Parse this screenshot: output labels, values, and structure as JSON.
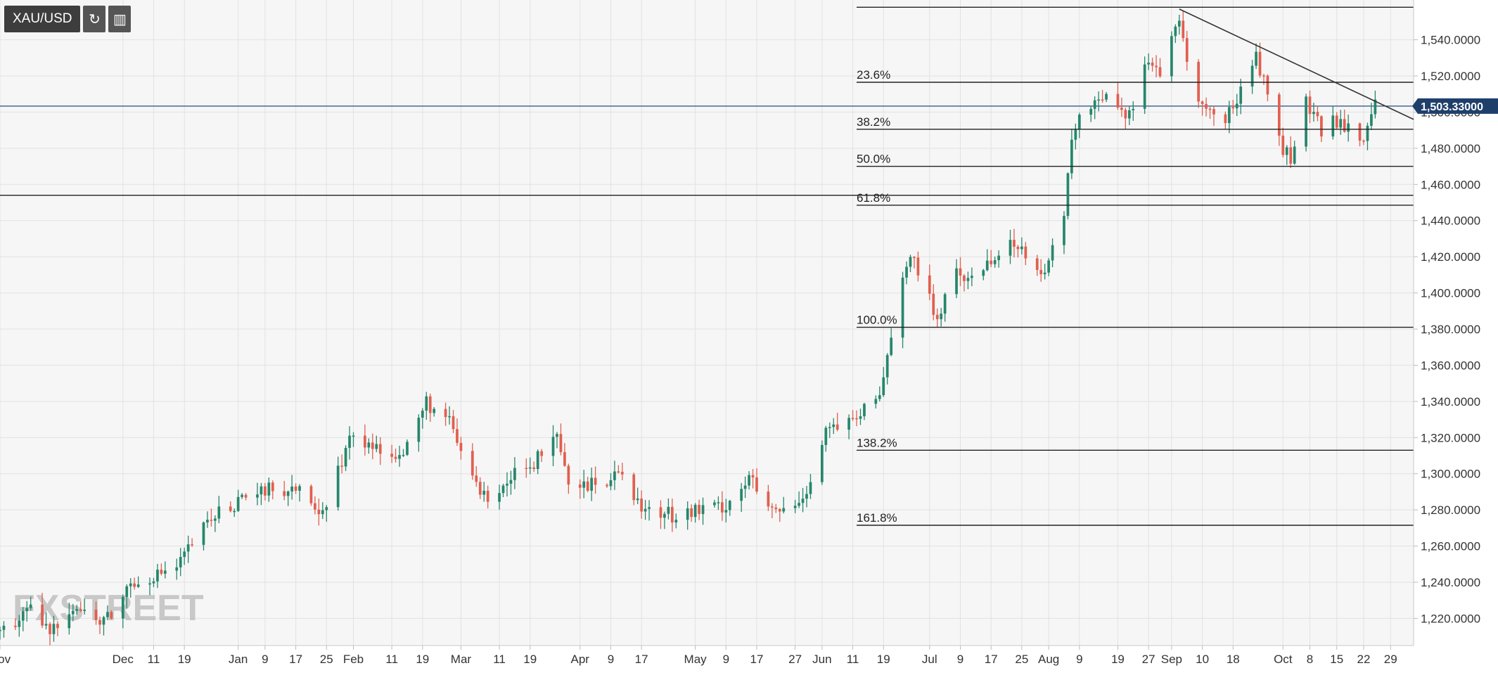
{
  "toolbar": {
    "symbol": "XAU/USD",
    "refresh_icon": "refresh-icon",
    "indicator_icon": "indicator-icon"
  },
  "watermark": "FXSTREET",
  "current_price_label": "1,503.33000",
  "colors": {
    "up": "#26866b",
    "down": "#e15f4f",
    "current_line": "#2c4a7c",
    "badge": "#1f3f6b"
  },
  "chart_data": {
    "type": "candlestick",
    "symbol": "XAU/USD",
    "ylim": [
      1205,
      1562
    ],
    "y_ticks": [
      1220,
      1240,
      1260,
      1280,
      1300,
      1320,
      1340,
      1360,
      1380,
      1400,
      1420,
      1440,
      1460,
      1480,
      1500,
      1520,
      1540
    ],
    "y_tick_labels": [
      "1,220.0000",
      "1,240.0000",
      "1,260.0000",
      "1,280.0000",
      "1,300.0000",
      "1,320.0000",
      "1,340.0000",
      "1,360.0000",
      "1,380.0000",
      "1,400.0000",
      "1,420.0000",
      "1,440.0000",
      "1,460.0000",
      "1,480.0000",
      "1,500.0000",
      "1,520.0000",
      "1,540.0000"
    ],
    "x_range": [
      "2018-11-01",
      "2019-11-04"
    ],
    "x_ticks": [
      {
        "label": "Nov",
        "date": "2018-11-01"
      },
      {
        "label": "Dec",
        "date": "2018-12-03"
      },
      {
        "label": "11",
        "date": "2018-12-11"
      },
      {
        "label": "19",
        "date": "2018-12-19"
      },
      {
        "label": "Jan",
        "date": "2019-01-02"
      },
      {
        "label": "9",
        "date": "2019-01-09"
      },
      {
        "label": "17",
        "date": "2019-01-17"
      },
      {
        "label": "25",
        "date": "2019-01-25"
      },
      {
        "label": "Feb",
        "date": "2019-02-01"
      },
      {
        "label": "11",
        "date": "2019-02-11"
      },
      {
        "label": "19",
        "date": "2019-02-19"
      },
      {
        "label": "Mar",
        "date": "2019-03-01"
      },
      {
        "label": "11",
        "date": "2019-03-11"
      },
      {
        "label": "19",
        "date": "2019-03-19"
      },
      {
        "label": "Apr",
        "date": "2019-04-01"
      },
      {
        "label": "9",
        "date": "2019-04-09"
      },
      {
        "label": "17",
        "date": "2019-04-17"
      },
      {
        "label": "May",
        "date": "2019-05-01"
      },
      {
        "label": "9",
        "date": "2019-05-09"
      },
      {
        "label": "17",
        "date": "2019-05-17"
      },
      {
        "label": "27",
        "date": "2019-05-27"
      },
      {
        "label": "Jun",
        "date": "2019-06-03"
      },
      {
        "label": "11",
        "date": "2019-06-11"
      },
      {
        "label": "19",
        "date": "2019-06-19"
      },
      {
        "label": "Jul",
        "date": "2019-07-01"
      },
      {
        "label": "9",
        "date": "2019-07-09"
      },
      {
        "label": "17",
        "date": "2019-07-17"
      },
      {
        "label": "25",
        "date": "2019-07-25"
      },
      {
        "label": "Aug",
        "date": "2019-08-01"
      },
      {
        "label": "9",
        "date": "2019-08-09"
      },
      {
        "label": "19",
        "date": "2019-08-19"
      },
      {
        "label": "27",
        "date": "2019-08-27"
      },
      {
        "label": "Sep",
        "date": "2019-09-02"
      },
      {
        "label": "10",
        "date": "2019-09-10"
      },
      {
        "label": "18",
        "date": "2019-09-18"
      },
      {
        "label": "Oct",
        "date": "2019-10-01"
      },
      {
        "label": "8",
        "date": "2019-10-08"
      },
      {
        "label": "15",
        "date": "2019-10-15"
      },
      {
        "label": "22",
        "date": "2019-10-22"
      },
      {
        "label": "29",
        "date": "2019-10-29"
      }
    ],
    "current_price": 1503.33,
    "fibonacci": {
      "start_date": "2019-06-12",
      "levels": [
        {
          "label": "23.6%",
          "price": 1516.5
        },
        {
          "label": "38.2%",
          "price": 1490.5
        },
        {
          "label": "50.0%",
          "price": 1470.0
        },
        {
          "label": "61.8%",
          "price": 1448.5
        },
        {
          "label": "100.0%",
          "price": 1381.0
        },
        {
          "label": "138.2%",
          "price": 1313.0
        },
        {
          "label": "161.8%",
          "price": 1271.5
        }
      ],
      "top_level_price": 1558.0
    },
    "horizontal_line": {
      "price": 1454.0
    },
    "trendline": {
      "start": {
        "date": "2019-09-04",
        "price": 1557.0
      },
      "end": {
        "date": "2019-11-04",
        "price": 1496.0
      }
    },
    "ohlc_path": [
      [
        "2018-11-01",
        1213
      ],
      [
        "2018-11-09",
        1224
      ],
      [
        "2018-11-14",
        1212
      ],
      [
        "2018-11-20",
        1228
      ],
      [
        "2018-11-27",
        1218
      ],
      [
        "2018-11-30",
        1222
      ],
      [
        "2018-12-05",
        1240
      ],
      [
        "2018-12-11",
        1244
      ],
      [
        "2018-12-17",
        1248
      ],
      [
        "2018-12-21",
        1262
      ],
      [
        "2018-12-28",
        1280
      ],
      [
        "2019-01-04",
        1285
      ],
      [
        "2019-01-10",
        1291
      ],
      [
        "2019-01-17",
        1292
      ],
      [
        "2019-01-21",
        1281
      ],
      [
        "2019-01-25",
        1283
      ],
      [
        "2019-01-31",
        1320
      ],
      [
        "2019-02-05",
        1316
      ],
      [
        "2019-02-14",
        1311
      ],
      [
        "2019-02-20",
        1340
      ],
      [
        "2019-02-26",
        1328
      ],
      [
        "2019-03-01",
        1312
      ],
      [
        "2019-03-07",
        1287
      ],
      [
        "2019-03-12",
        1295
      ],
      [
        "2019-03-19",
        1304
      ],
      [
        "2019-03-26",
        1318
      ],
      [
        "2019-03-29",
        1293
      ],
      [
        "2019-04-02",
        1292
      ],
      [
        "2019-04-09",
        1297
      ],
      [
        "2019-04-12",
        1303
      ],
      [
        "2019-04-17",
        1281
      ],
      [
        "2019-04-25",
        1277
      ],
      [
        "2019-05-02",
        1280
      ],
      [
        "2019-05-09",
        1283
      ],
      [
        "2019-05-15",
        1298
      ],
      [
        "2019-05-21",
        1278
      ],
      [
        "2019-05-28",
        1283
      ],
      [
        "2019-05-31",
        1298
      ],
      [
        "2019-06-04",
        1325
      ],
      [
        "2019-06-11",
        1328
      ],
      [
        "2019-06-18",
        1344
      ],
      [
        "2019-06-24",
        1412
      ],
      [
        "2019-06-27",
        1418
      ],
      [
        "2019-07-03",
        1385
      ],
      [
        "2019-07-08",
        1410
      ],
      [
        "2019-07-12",
        1408
      ],
      [
        "2019-07-17",
        1420
      ],
      [
        "2019-07-24",
        1428
      ],
      [
        "2019-07-31",
        1412
      ],
      [
        "2019-08-05",
        1440
      ],
      [
        "2019-08-07",
        1488
      ],
      [
        "2019-08-12",
        1505
      ],
      [
        "2019-08-16",
        1512
      ],
      [
        "2019-08-22",
        1498
      ],
      [
        "2019-08-26",
        1530
      ],
      [
        "2019-08-30",
        1522
      ],
      [
        "2019-09-04",
        1550
      ],
      [
        "2019-09-09",
        1505
      ],
      [
        "2019-09-16",
        1495
      ],
      [
        "2019-09-24",
        1532
      ],
      [
        "2019-10-01",
        1480
      ],
      [
        "2019-10-03",
        1475
      ],
      [
        "2019-10-07",
        1505
      ],
      [
        "2019-10-11",
        1490
      ],
      [
        "2019-10-14",
        1496
      ],
      [
        "2019-10-17",
        1490
      ],
      [
        "2019-10-22",
        1488
      ],
      [
        "2019-10-25",
        1503
      ]
    ]
  }
}
